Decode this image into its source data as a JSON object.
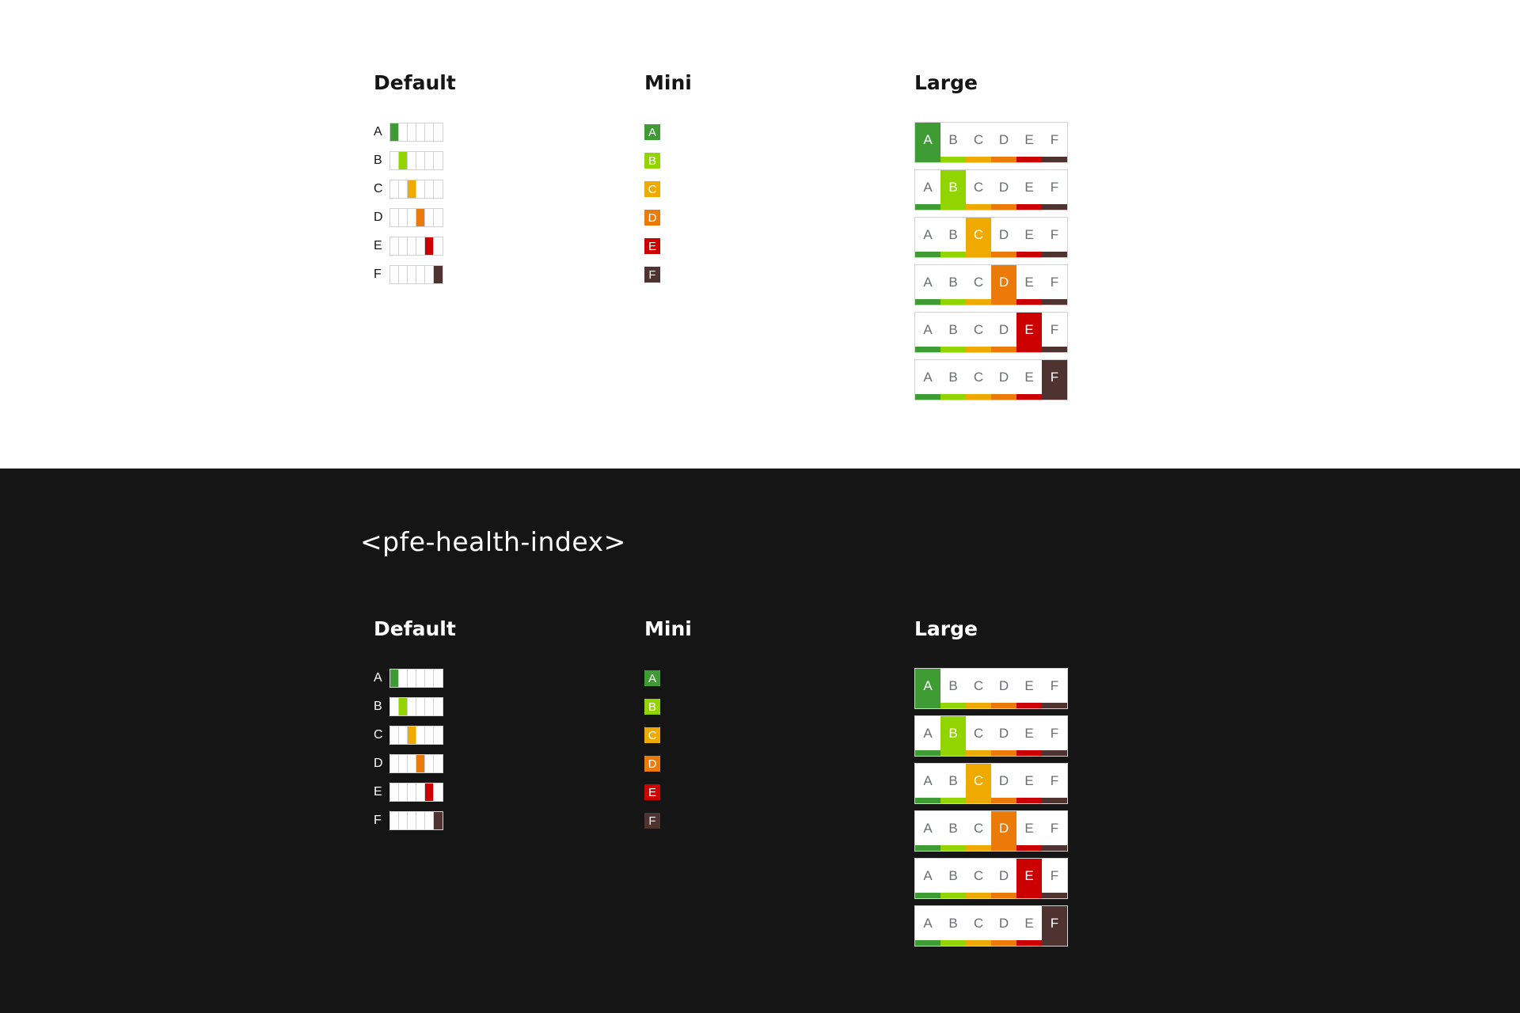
{
  "title": "<pfe-health-index>",
  "headings": {
    "default": "Default",
    "mini": "Mini",
    "large": "Large"
  },
  "grades": [
    "A",
    "B",
    "C",
    "D",
    "E",
    "F"
  ],
  "colors": {
    "A": "#3f9c35",
    "B": "#92d400",
    "C": "#efaa00",
    "D": "#ec7a08",
    "E": "#cc0000",
    "F": "#4f3330"
  }
}
